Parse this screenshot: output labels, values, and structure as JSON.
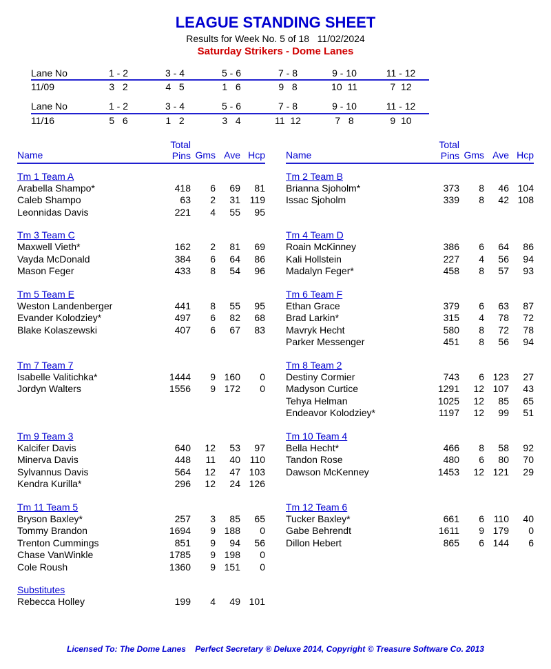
{
  "header": {
    "title": "LEAGUE STANDING SHEET",
    "subtitle": "Results for Week No. 5 of 18   11/02/2024",
    "league": "Saturday Strikers - Dome Lanes"
  },
  "laneHeader": "Lane No",
  "lanePairs": [
    "1 - 2",
    "3 - 4",
    "5 - 6",
    "7 - 8",
    "9 - 10",
    "11 - 12"
  ],
  "laneSchedules": [
    {
      "date": "11/09",
      "vals": [
        "3   2",
        "4   5",
        "1   6",
        "9   8",
        "10  11",
        "7  12"
      ]
    },
    {
      "date": "11/16",
      "vals": [
        "5   6",
        "1   2",
        "3   4",
        "11  12",
        "7   8",
        "9  10"
      ]
    }
  ],
  "colHeaders": {
    "name": "Name",
    "total": "Total",
    "pins": "Pins",
    "gms": "Gms",
    "ave": "Ave",
    "hcp": "Hcp"
  },
  "teams": [
    {
      "col": 0,
      "name": "Tm 1 Team A",
      "players": [
        {
          "n": "Arabella Shampo*",
          "p": "418",
          "g": "6",
          "a": "69",
          "h": "81"
        },
        {
          "n": "Caleb Shampo",
          "p": "63",
          "g": "2",
          "a": "31",
          "h": "119"
        },
        {
          "n": "Leonnidas Davis",
          "p": "221",
          "g": "4",
          "a": "55",
          "h": "95"
        }
      ]
    },
    {
      "col": 1,
      "name": "Tm 2 Team B",
      "players": [
        {
          "n": "Brianna Sjoholm*",
          "p": "373",
          "g": "8",
          "a": "46",
          "h": "104"
        },
        {
          "n": "Issac Sjoholm",
          "p": "339",
          "g": "8",
          "a": "42",
          "h": "108"
        }
      ]
    },
    {
      "col": 0,
      "name": "Tm 3 Team C",
      "players": [
        {
          "n": "Maxwell Vieth*",
          "p": "162",
          "g": "2",
          "a": "81",
          "h": "69"
        },
        {
          "n": "Vayda McDonald",
          "p": "384",
          "g": "6",
          "a": "64",
          "h": "86"
        },
        {
          "n": "Mason Feger",
          "p": "433",
          "g": "8",
          "a": "54",
          "h": "96"
        }
      ]
    },
    {
      "col": 1,
      "name": "Tm 4 Team D",
      "players": [
        {
          "n": "Roain McKinney",
          "p": "386",
          "g": "6",
          "a": "64",
          "h": "86"
        },
        {
          "n": "Kali Hollstein",
          "p": "227",
          "g": "4",
          "a": "56",
          "h": "94"
        },
        {
          "n": "Madalyn Feger*",
          "p": "458",
          "g": "8",
          "a": "57",
          "h": "93"
        }
      ]
    },
    {
      "col": 0,
      "name": "Tm 5 Team E",
      "players": [
        {
          "n": "Weston Landenberger",
          "p": "441",
          "g": "8",
          "a": "55",
          "h": "95"
        },
        {
          "n": "Evander Kolodziey*",
          "p": "497",
          "g": "6",
          "a": "82",
          "h": "68"
        },
        {
          "n": "Blake Kolaszewski",
          "p": "407",
          "g": "6",
          "a": "67",
          "h": "83"
        }
      ]
    },
    {
      "col": 1,
      "name": "Tm 6 Team F",
      "players": [
        {
          "n": "Ethan Grace",
          "p": "379",
          "g": "6",
          "a": "63",
          "h": "87"
        },
        {
          "n": "Brad Larkin*",
          "p": "315",
          "g": "4",
          "a": "78",
          "h": "72"
        },
        {
          "n": "Mavryk Hecht",
          "p": "580",
          "g": "8",
          "a": "72",
          "h": "78"
        },
        {
          "n": "Parker Messenger",
          "p": "451",
          "g": "8",
          "a": "56",
          "h": "94"
        }
      ]
    },
    {
      "col": 0,
      "name": "Tm 7 Team 7",
      "players": [
        {
          "n": "Isabelle Valitichka*",
          "p": "1444",
          "g": "9",
          "a": "160",
          "h": "0"
        },
        {
          "n": "Jordyn Walters",
          "p": "1556",
          "g": "9",
          "a": "172",
          "h": "0"
        }
      ]
    },
    {
      "col": 1,
      "name": "Tm 8 Team 2",
      "players": [
        {
          "n": "Destiny Cormier",
          "p": "743",
          "g": "6",
          "a": "123",
          "h": "27"
        },
        {
          "n": "Madyson Curtice",
          "p": "1291",
          "g": "12",
          "a": "107",
          "h": "43"
        },
        {
          "n": "Tehya Helman",
          "p": "1025",
          "g": "12",
          "a": "85",
          "h": "65"
        },
        {
          "n": "Endeavor Kolodziey*",
          "p": "1197",
          "g": "12",
          "a": "99",
          "h": "51"
        }
      ]
    },
    {
      "col": 0,
      "name": "Tm 9 Team 3",
      "players": [
        {
          "n": "Kalcifer Davis",
          "p": "640",
          "g": "12",
          "a": "53",
          "h": "97"
        },
        {
          "n": "Minerva Davis",
          "p": "448",
          "g": "11",
          "a": "40",
          "h": "110"
        },
        {
          "n": "Sylvannus Davis",
          "p": "564",
          "g": "12",
          "a": "47",
          "h": "103"
        },
        {
          "n": "Kendra Kurilla*",
          "p": "296",
          "g": "12",
          "a": "24",
          "h": "126"
        }
      ]
    },
    {
      "col": 1,
      "name": "Tm 10 Team 4",
      "players": [
        {
          "n": "Bella Hecht*",
          "p": "466",
          "g": "8",
          "a": "58",
          "h": "92"
        },
        {
          "n": "Tandon Rose",
          "p": "480",
          "g": "6",
          "a": "80",
          "h": "70"
        },
        {
          "n": "Dawson McKenney",
          "p": "1453",
          "g": "12",
          "a": "121",
          "h": "29"
        }
      ]
    },
    {
      "col": 0,
      "name": "Tm 11 Team 5",
      "players": [
        {
          "n": "Bryson Baxley*",
          "p": "257",
          "g": "3",
          "a": "85",
          "h": "65"
        },
        {
          "n": "Tommy Brandon",
          "p": "1694",
          "g": "9",
          "a": "188",
          "h": "0"
        },
        {
          "n": "Trenton Cummings",
          "p": "851",
          "g": "9",
          "a": "94",
          "h": "56"
        },
        {
          "n": "Chase VanWinkle",
          "p": "1785",
          "g": "9",
          "a": "198",
          "h": "0"
        },
        {
          "n": "Cole Roush",
          "p": "1360",
          "g": "9",
          "a": "151",
          "h": "0"
        }
      ]
    },
    {
      "col": 1,
      "name": "Tm 12 Team 6",
      "players": [
        {
          "n": "Tucker Baxley*",
          "p": "661",
          "g": "6",
          "a": "110",
          "h": "40"
        },
        {
          "n": "Gabe Behrendt",
          "p": "1611",
          "g": "9",
          "a": "179",
          "h": "0"
        },
        {
          "n": "Dillon Hebert",
          "p": "865",
          "g": "6",
          "a": "144",
          "h": "6"
        }
      ]
    },
    {
      "col": 0,
      "name": "Substitutes",
      "players": [
        {
          "n": "Rebecca Holley",
          "p": "199",
          "g": "4",
          "a": "49",
          "h": "101"
        }
      ]
    }
  ],
  "footer": "Licensed To: The Dome Lanes    Perfect Secretary ® Deluxe 2014, Copyright © Treasure Software Co. 2013"
}
